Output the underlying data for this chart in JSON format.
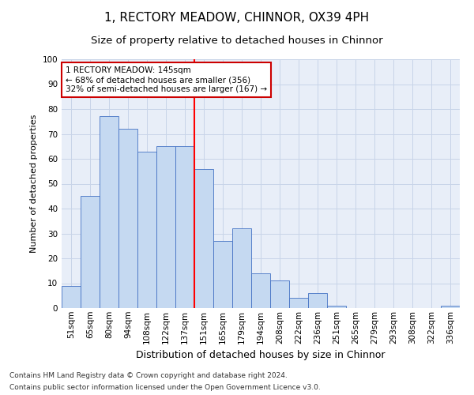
{
  "title1": "1, RECTORY MEADOW, CHINNOR, OX39 4PH",
  "title2": "Size of property relative to detached houses in Chinnor",
  "xlabel": "Distribution of detached houses by size in Chinnor",
  "ylabel": "Number of detached properties",
  "categories": [
    "51sqm",
    "65sqm",
    "80sqm",
    "94sqm",
    "108sqm",
    "122sqm",
    "137sqm",
    "151sqm",
    "165sqm",
    "179sqm",
    "194sqm",
    "208sqm",
    "222sqm",
    "236sqm",
    "251sqm",
    "265sqm",
    "279sqm",
    "293sqm",
    "308sqm",
    "322sqm",
    "336sqm"
  ],
  "values": [
    9,
    45,
    77,
    72,
    63,
    65,
    65,
    56,
    27,
    32,
    14,
    11,
    4,
    6,
    1,
    0,
    0,
    0,
    0,
    0,
    1
  ],
  "bar_color": "#c5d9f1",
  "bar_edge_color": "#4472c4",
  "grid_color": "#c8d4e8",
  "bg_color": "#e8eef8",
  "vline_x_index": 7,
  "annotation_text": "1 RECTORY MEADOW: 145sqm\n← 68% of detached houses are smaller (356)\n32% of semi-detached houses are larger (167) →",
  "annotation_box_color": "#ffffff",
  "annotation_box_edge": "#cc0000",
  "footnote1": "Contains HM Land Registry data © Crown copyright and database right 2024.",
  "footnote2": "Contains public sector information licensed under the Open Government Licence v3.0.",
  "ylim": [
    0,
    100
  ],
  "title1_fontsize": 11,
  "title2_fontsize": 9.5,
  "xlabel_fontsize": 9,
  "ylabel_fontsize": 8,
  "tick_fontsize": 7.5,
  "annot_fontsize": 7.5,
  "footnote_fontsize": 6.5
}
